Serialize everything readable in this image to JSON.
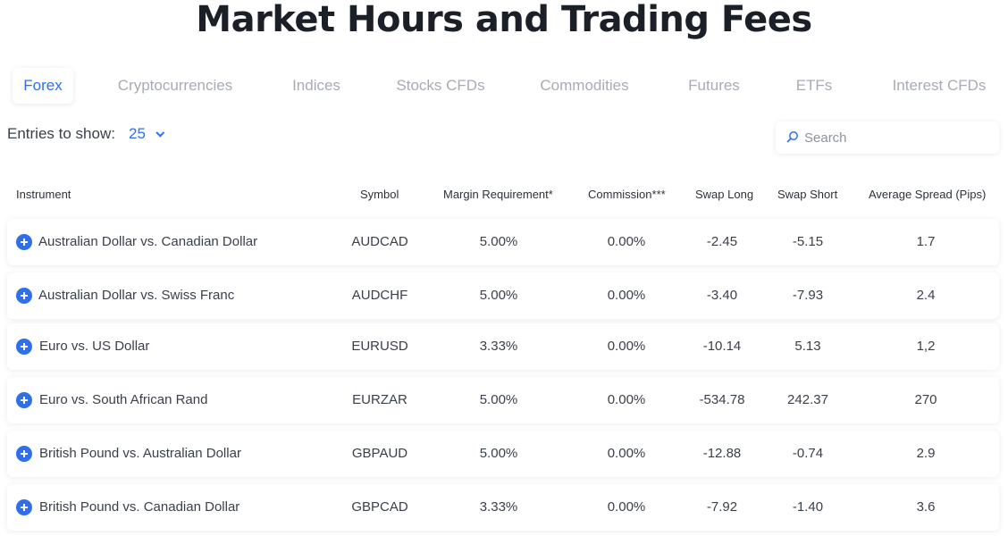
{
  "page": {
    "title": "Market Hours and Trading Fees"
  },
  "tabs": [
    {
      "label": "Forex",
      "active": true
    },
    {
      "label": "Cryptocurrencies",
      "active": false
    },
    {
      "label": "Indices",
      "active": false
    },
    {
      "label": "Stocks CFDs",
      "active": false
    },
    {
      "label": "Commodities",
      "active": false
    },
    {
      "label": "Futures",
      "active": false
    },
    {
      "label": "ETFs",
      "active": false
    },
    {
      "label": "Interest CFDs",
      "active": false
    }
  ],
  "entries": {
    "label": "Entries to show:",
    "value": "25"
  },
  "search": {
    "placeholder": "Search",
    "icon": "search-icon"
  },
  "table": {
    "headers": {
      "instrument": "Instrument",
      "symbol": "Symbol",
      "margin": "Margin Requirement*",
      "commission": "Commission***",
      "swap_long": "Swap Long",
      "swap_short": "Swap Short",
      "spread": "Average Spread (Pips)"
    },
    "rows": [
      {
        "instrument": "Australian Dollar vs. Canadian Dollar",
        "symbol": "AUDCAD",
        "margin": "5.00%",
        "commission": "0.00%",
        "swap_long": "-2.45",
        "swap_short": "-5.15",
        "spread": "1.7"
      },
      {
        "instrument": "Australian Dollar vs. Swiss Franc",
        "symbol": "AUDCHF",
        "margin": "5.00%",
        "commission": "0.00%",
        "swap_long": "-3.40",
        "swap_short": "-7.93",
        "spread": "2.4"
      },
      {
        "instrument": "Euro vs. US Dollar",
        "symbol": "EURUSD",
        "margin": "3.33%",
        "commission": "0.00%",
        "swap_long": "-10.14",
        "swap_short": "5.13",
        "spread": "1,2"
      },
      {
        "instrument": "Euro vs. South African Rand",
        "symbol": "EURZAR",
        "margin": "5.00%",
        "commission": "0.00%",
        "swap_long": "-534.78",
        "swap_short": "242.37",
        "spread": "270"
      },
      {
        "instrument": "British Pound vs. Australian Dollar",
        "symbol": "GBPAUD",
        "margin": "5.00%",
        "commission": "0.00%",
        "swap_long": "-12.88",
        "swap_short": "-0.74",
        "spread": "2.9"
      },
      {
        "instrument": "British Pound vs. Canadian Dollar",
        "symbol": "GBPCAD",
        "margin": "3.33%",
        "commission": "0.00%",
        "swap_long": "-7.92",
        "swap_short": "-1.40",
        "spread": "3.6"
      }
    ]
  },
  "colors": {
    "accent": "#2f6fea",
    "tab_inactive": "#a7acb4",
    "text": "#3a404a"
  }
}
